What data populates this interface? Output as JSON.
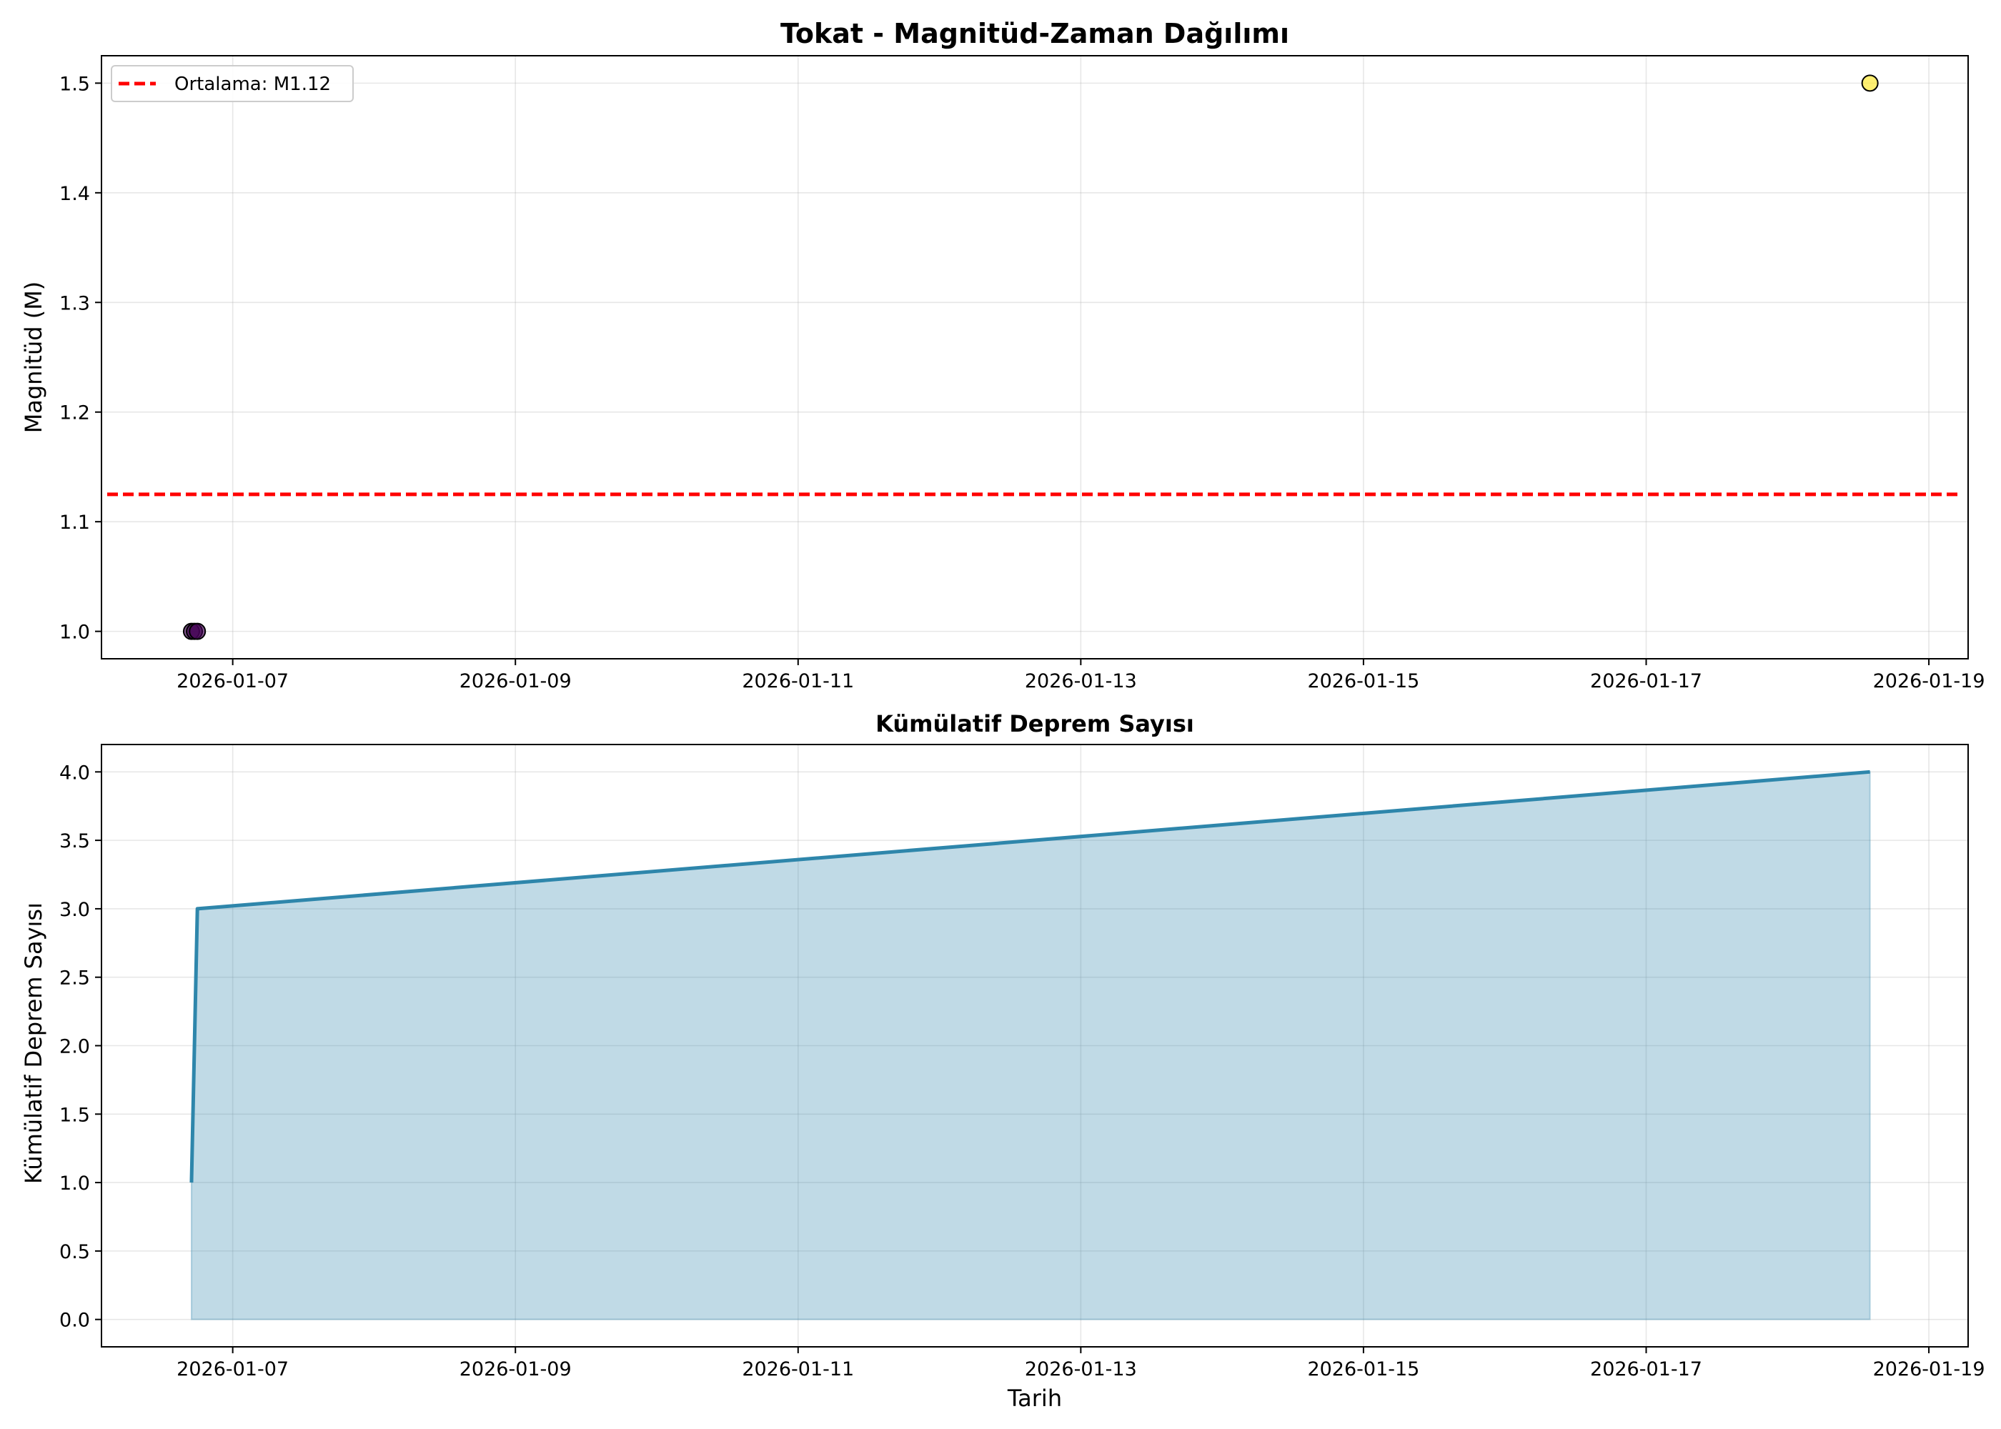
{
  "chart_data": [
    {
      "type": "scatter",
      "title": "Tokat - Magnitüd-Zaman Dağılımı",
      "xlabel": "",
      "ylabel": "Magnitüd (M)",
      "x_ticks": [
        "2026-01-07",
        "2026-01-09",
        "2026-01-11",
        "2026-01-13",
        "2026-01-15",
        "2026-01-17",
        "2026-01-19"
      ],
      "y_ticks": [
        "1.0",
        "1.1",
        "1.2",
        "1.3",
        "1.4",
        "1.5"
      ],
      "xlim": [
        "2026-01-06T01:43",
        "2026-01-19T06:40"
      ],
      "ylim": [
        0.975,
        1.525
      ],
      "grid": true,
      "legend_position": "upper-left",
      "points": [
        {
          "x": "2026-01-06T17:00",
          "y": 1.0,
          "color": "#440154"
        },
        {
          "x": "2026-01-06T17:30",
          "y": 1.0,
          "color": "#440154"
        },
        {
          "x": "2026-01-06T18:00",
          "y": 1.0,
          "color": "#440154"
        },
        {
          "x": "2026-01-18T14:00",
          "y": 1.5,
          "color": "#fde725"
        }
      ],
      "mean_line": {
        "label": "Ortalama: M1.12",
        "value": 1.125,
        "color": "#ff0000"
      }
    },
    {
      "type": "area",
      "title": "Kümülatif Deprem Sayısı",
      "xlabel": "Tarih",
      "ylabel": "Kümülatif Deprem Sayısı",
      "x_ticks": [
        "2026-01-07",
        "2026-01-09",
        "2026-01-11",
        "2026-01-13",
        "2026-01-15",
        "2026-01-17",
        "2026-01-19"
      ],
      "y_ticks": [
        "0.0",
        "0.5",
        "1.0",
        "1.5",
        "2.0",
        "2.5",
        "3.0",
        "3.5",
        "4.0"
      ],
      "xlim": [
        "2026-01-06T01:43",
        "2026-01-19T06:40"
      ],
      "ylim": [
        -0.2,
        4.2
      ],
      "grid": true,
      "series": [
        {
          "x": [
            "2026-01-06T17:00",
            "2026-01-06T17:30",
            "2026-01-06T18:00",
            "2026-01-18T14:00"
          ],
          "values": [
            1,
            2,
            3,
            4
          ],
          "line_color": "#2e86ab",
          "fill_color": "#2e86ab"
        }
      ]
    }
  ]
}
